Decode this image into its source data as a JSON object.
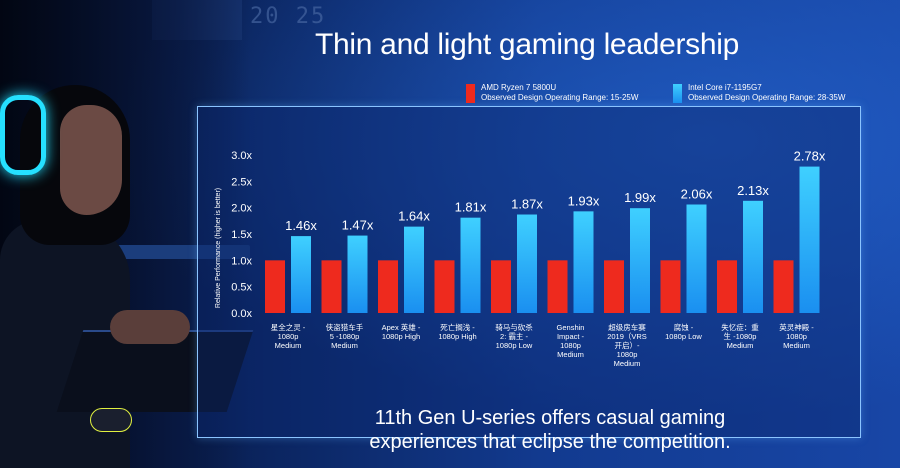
{
  "page": {
    "title": "Thin and light gaming leadership",
    "footer_line1": "11th Gen U-series offers casual gaming",
    "footer_line2": "experiences that eclipse the competition.",
    "clock_text": "20 25"
  },
  "legend": {
    "amd_name": "AMD Ryzen 7 5800U",
    "amd_range": "Observed Design Operating Range: 15-25W",
    "intel_name": "Intel Core i7-1195G7",
    "intel_range": "Observed Design Operating Range: 28-35W"
  },
  "colors": {
    "amd": "#ee2a1e",
    "intel_top": "#3fd0ff",
    "intel_bottom": "#1a8ff0",
    "text": "#ffffff",
    "grid": "#7aa6e8"
  },
  "chart_data": {
    "type": "bar",
    "title": "Thin and light gaming leadership",
    "xlabel": "",
    "ylabel": "Relative Performance (higher is better)",
    "ylim": [
      0,
      3.0
    ],
    "yticks": [
      "0.0x",
      "0.5x",
      "1.0x",
      "1.5x",
      "2.0x",
      "2.5x",
      "3.0x"
    ],
    "categories": [
      "星全之灵 - 1080p Medium",
      "侠盗猎车手5 -1080p Medium",
      "Apex 英雄 - 1080p High",
      "死亡搁浅 - 1080p High",
      "骑马与砍杀2: 霸主 - 1080p Low",
      "Genshin Impact - 1080p Medium",
      "超级房车赛 2019（VRS 开启）- 1080p Medium",
      "腐蚀 - 1080p Low",
      "失忆症：重生 -1080p Medium",
      "英灵神殿 - 1080p Medium"
    ],
    "category_lines": [
      [
        "星全之灵 -",
        "1080p",
        "Medium"
      ],
      [
        "侠盗猎车手",
        "5 -1080p",
        "Medium"
      ],
      [
        "Apex 英雄 -",
        "1080p High"
      ],
      [
        "死亡搁浅 -",
        "1080p High"
      ],
      [
        "骑马与砍杀",
        "2: 霸主 -",
        "1080p Low"
      ],
      [
        "Genshin",
        "Impact -",
        "1080p",
        "Medium"
      ],
      [
        "超级房车赛",
        "2019（VRS",
        "开启）-",
        "1080p",
        "Medium"
      ],
      [
        "腐蚀 -",
        "1080p Low"
      ],
      [
        "失忆症：重",
        "生 -1080p",
        "Medium"
      ],
      [
        "英灵神殿 -",
        "1080p",
        "Medium"
      ]
    ],
    "series": [
      {
        "name": "AMD Ryzen 7 5800U",
        "values": [
          1.0,
          1.0,
          1.0,
          1.0,
          1.0,
          1.0,
          1.0,
          1.0,
          1.0,
          1.0
        ]
      },
      {
        "name": "Intel Core i7-1195G7",
        "values": [
          1.46,
          1.47,
          1.64,
          1.81,
          1.87,
          1.93,
          1.99,
          2.06,
          2.13,
          2.78
        ]
      }
    ],
    "data_labels": [
      "1.46x",
      "1.47x",
      "1.64x",
      "1.81x",
      "1.87x",
      "1.93x",
      "1.99x",
      "2.06x",
      "2.13x",
      "2.78x"
    ]
  }
}
